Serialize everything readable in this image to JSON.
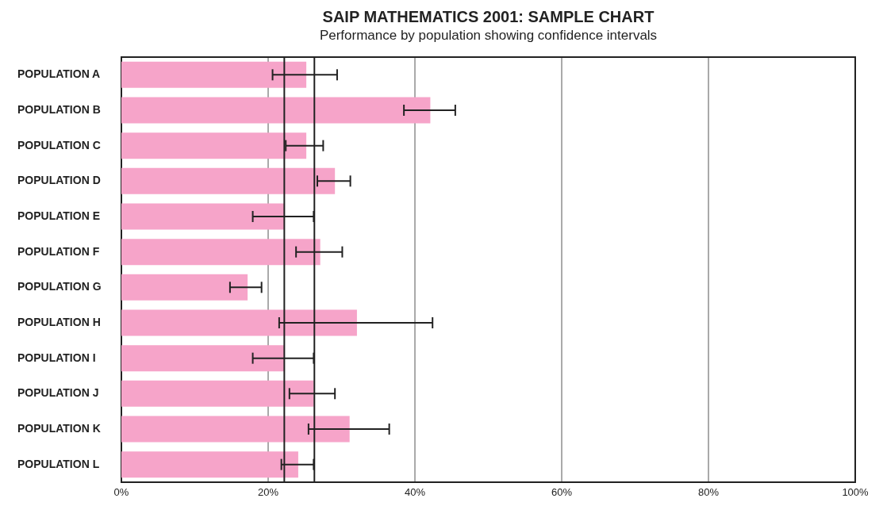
{
  "chart_data": {
    "type": "bar",
    "orientation": "horizontal",
    "title": "SAIP MATHEMATICS 2001: SAMPLE CHART",
    "subtitle": "Performance by population showing confidence intervals",
    "categories": [
      "POPULATION A",
      "POPULATION B",
      "POPULATION C",
      "POPULATION D",
      "POPULATION E",
      "POPULATION F",
      "POPULATION G",
      "POPULATION H",
      "POPULATION I",
      "POPULATION J",
      "POPULATION K",
      "POPULATION L"
    ],
    "values": [
      25.2,
      42.1,
      25.2,
      29.1,
      22.2,
      27.1,
      17.2,
      32.1,
      22.2,
      26.2,
      31.1,
      24.1
    ],
    "errors": [
      [
        20.6,
        29.4
      ],
      [
        38.5,
        45.5
      ],
      [
        22.4,
        27.5
      ],
      [
        26.7,
        31.2
      ],
      [
        17.9,
        26.2
      ],
      [
        23.8,
        30.1
      ],
      [
        14.8,
        19.1
      ],
      [
        21.5,
        42.4
      ],
      [
        17.9,
        26.2
      ],
      [
        22.9,
        29.1
      ],
      [
        25.5,
        36.5
      ],
      [
        21.8,
        26.2
      ]
    ],
    "color": "#f6a4c9",
    "xlim": [
      0,
      100
    ],
    "xticks": [
      {
        "value": 0,
        "label": "0%"
      },
      {
        "value": 20,
        "label": "20%"
      },
      {
        "value": 40,
        "label": "40%"
      },
      {
        "value": 60,
        "label": "60%"
      },
      {
        "value": 80,
        "label": "80%"
      },
      {
        "value": 100,
        "label": "100%"
      }
    ],
    "grid": "x",
    "ref_lines": [
      {
        "axis": "x",
        "value": 22.2
      },
      {
        "axis": "x",
        "value": 26.3
      }
    ]
  }
}
